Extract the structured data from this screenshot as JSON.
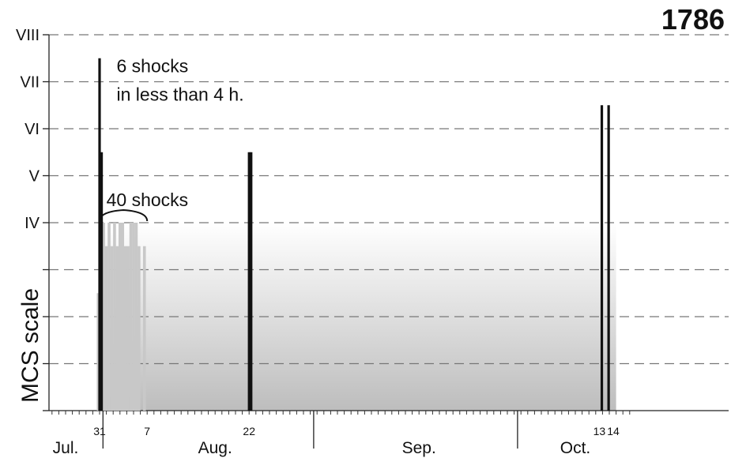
{
  "chart_data": {
    "type": "bar",
    "title": "1786",
    "ylabel": "MCS scale",
    "xlabel": "",
    "y_range": [
      0,
      8
    ],
    "y_ticks": [
      "",
      "",
      "",
      "",
      "IV",
      "V",
      "VI",
      "VII",
      "VIII"
    ],
    "grid": "dashed horizontal",
    "x_day_labels": [
      {
        "label": "31",
        "day": 31
      },
      {
        "label": "7",
        "day": 38
      },
      {
        "label": "22",
        "day": 53
      },
      {
        "label": "13",
        "day": 105
      },
      {
        "label": "14",
        "day": 106
      }
    ],
    "months": [
      "Jul.",
      "Aug.",
      "Sep.",
      "Oct."
    ],
    "series": [
      {
        "name": "",
        "color": "#111111",
        "points": [
          {
            "day": 31.0,
            "mcs": 7.5
          },
          {
            "day": 31.3,
            "mcs": 5.5
          },
          {
            "day": 53.0,
            "mcs": 5.5
          },
          {
            "day": 53.3,
            "mcs": 5.5
          },
          {
            "day": 104.9,
            "mcs": 6.5
          },
          {
            "day": 105.9,
            "mcs": 6.5
          }
        ]
      },
      {
        "name": "",
        "color": "#c8c8c8",
        "points": [
          {
            "day": 30.8,
            "mcs": 2.5
          },
          {
            "day": 31.6,
            "mcs": 4.0
          },
          {
            "day": 32.0,
            "mcs": 3.5
          },
          {
            "day": 32.4,
            "mcs": 4.0
          },
          {
            "day": 32.8,
            "mcs": 3.5
          },
          {
            "day": 33.2,
            "mcs": 4.0
          },
          {
            "day": 33.6,
            "mcs": 3.5
          },
          {
            "day": 34.0,
            "mcs": 4.0
          },
          {
            "day": 34.4,
            "mcs": 4.0
          },
          {
            "day": 34.8,
            "mcs": 3.5
          },
          {
            "day": 35.2,
            "mcs": 3.5
          },
          {
            "day": 35.6,
            "mcs": 4.0
          },
          {
            "day": 36.0,
            "mcs": 4.0
          },
          {
            "day": 36.4,
            "mcs": 4.0
          },
          {
            "day": 36.8,
            "mcs": 3.5
          },
          {
            "day": 37.6,
            "mcs": 3.5
          }
        ]
      }
    ],
    "annotations": [
      {
        "text": "6 shocks",
        "day": 33.5,
        "mcs": 7.2
      },
      {
        "text": "in less than 4 h.",
        "day": 33.5,
        "mcs": 6.6
      },
      {
        "text": "40 shocks",
        "day": 32.0,
        "mcs": 4.35
      }
    ]
  }
}
